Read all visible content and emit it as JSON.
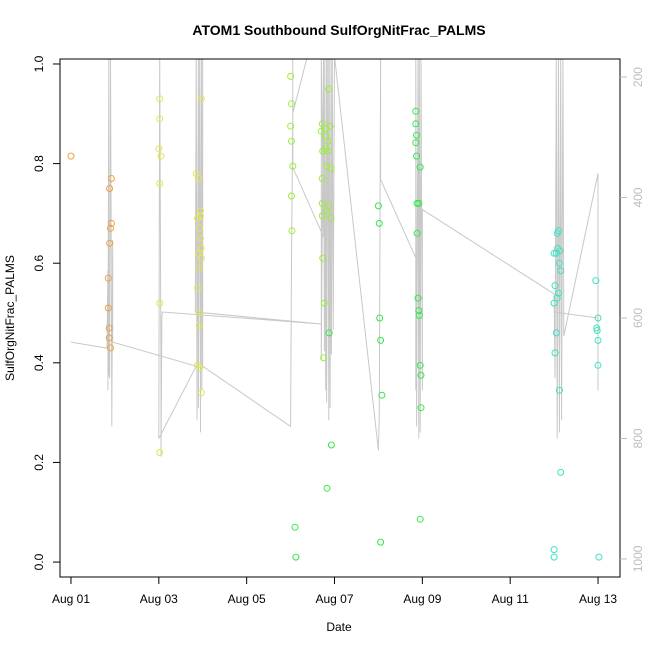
{
  "chart_data": {
    "type": "scatter",
    "title": "ATOM1 Southbound SulfOrgNitFrac_PALMS",
    "xlabel": "Date",
    "ylabel": "SulfOrgNitFrac_PALMS",
    "x_tick_labels": [
      "Aug 01",
      "Aug 03",
      "Aug 05",
      "Aug 07",
      "Aug 09",
      "Aug 11",
      "Aug 13"
    ],
    "x_tick_days": [
      1,
      3,
      5,
      7,
      9,
      11,
      13
    ],
    "x_range_days": [
      0.75,
      13.5
    ],
    "y_tick_labels": [
      "0.0",
      "0.2",
      "0.4",
      "0.6",
      "0.8",
      "1.0"
    ],
    "ylim": [
      -0.03,
      1.01
    ],
    "right_axis": {
      "quantity": "pressure",
      "tick_labels": [
        "200",
        "400",
        "600",
        "800",
        "1000"
      ],
      "range": [
        170,
        1030
      ],
      "inverted": true,
      "color": "#bdbdbd"
    },
    "grid": false,
    "point_series": [
      {
        "color": "#f0a040",
        "points": [
          [
            1.0,
            0.815
          ],
          [
            1.85,
            0.57
          ],
          [
            1.85,
            0.51
          ],
          [
            1.87,
            0.47
          ],
          [
            1.87,
            0.45
          ],
          [
            1.88,
            0.64
          ],
          [
            1.88,
            0.75
          ],
          [
            1.9,
            0.67
          ],
          [
            1.9,
            0.43
          ],
          [
            1.92,
            0.77
          ],
          [
            1.92,
            0.68
          ]
        ]
      },
      {
        "color": "#e6e64a",
        "points": [
          [
            3.0,
            0.83
          ],
          [
            3.02,
            0.93
          ],
          [
            3.02,
            0.89
          ],
          [
            3.02,
            0.76
          ],
          [
            3.02,
            0.52
          ],
          [
            3.02,
            0.22
          ],
          [
            3.05,
            0.815
          ],
          [
            3.85,
            0.78
          ],
          [
            3.88,
            0.69
          ],
          [
            3.88,
            0.55
          ],
          [
            3.88,
            0.395
          ],
          [
            3.9,
            0.77
          ],
          [
            3.9,
            0.62
          ],
          [
            3.92,
            0.59
          ],
          [
            3.92,
            0.5
          ],
          [
            3.92,
            0.475
          ],
          [
            3.93,
            0.67
          ],
          [
            3.93,
            0.39
          ],
          [
            3.95,
            0.705
          ],
          [
            3.95,
            0.695
          ],
          [
            3.95,
            0.65
          ],
          [
            3.96,
            0.63
          ],
          [
            3.97,
            0.93
          ],
          [
            3.97,
            0.34
          ],
          [
            3.97,
            0.61
          ]
        ]
      },
      {
        "color": "#9cf035",
        "points": [
          [
            6.0,
            0.975
          ],
          [
            6.0,
            0.875
          ],
          [
            6.02,
            0.92
          ],
          [
            6.02,
            0.845
          ],
          [
            6.02,
            0.735
          ],
          [
            6.03,
            0.665
          ],
          [
            6.05,
            0.795
          ],
          [
            6.7,
            0.865
          ],
          [
            6.72,
            0.88
          ],
          [
            6.72,
            0.77
          ],
          [
            6.72,
            0.72
          ],
          [
            6.72,
            0.695
          ],
          [
            6.73,
            0.825
          ],
          [
            6.73,
            0.61
          ],
          [
            6.75,
            0.41
          ],
          [
            6.77,
            0.52
          ],
          [
            6.8,
            0.87
          ],
          [
            6.8,
            0.855
          ],
          [
            6.8,
            0.83
          ],
          [
            6.82,
            0.795
          ],
          [
            6.82,
            0.705
          ],
          [
            6.85,
            0.845
          ],
          [
            6.85,
            0.825
          ],
          [
            6.87,
            0.95
          ],
          [
            6.87,
            0.715
          ],
          [
            6.9,
            0.875
          ],
          [
            6.92,
            0.79
          ],
          [
            6.92,
            0.69
          ]
        ]
      },
      {
        "color": "#33e94d",
        "points": [
          [
            6.1,
            0.07
          ],
          [
            6.12,
            0.01
          ],
          [
            6.88,
            0.46
          ],
          [
            6.93,
            0.235
          ],
          [
            6.83,
            0.148
          ],
          [
            8.0,
            0.715
          ],
          [
            8.02,
            0.68
          ],
          [
            8.03,
            0.49
          ],
          [
            8.05,
            0.445
          ],
          [
            8.08,
            0.335
          ],
          [
            8.05,
            0.04
          ],
          [
            8.85,
            0.905
          ],
          [
            8.85,
            0.88
          ],
          [
            8.85,
            0.842
          ],
          [
            8.87,
            0.857
          ],
          [
            8.87,
            0.815
          ],
          [
            8.88,
            0.72
          ],
          [
            8.88,
            0.66
          ],
          [
            8.9,
            0.53
          ],
          [
            8.92,
            0.72
          ],
          [
            8.92,
            0.505
          ],
          [
            8.93,
            0.495
          ],
          [
            8.95,
            0.793
          ],
          [
            8.95,
            0.395
          ],
          [
            8.97,
            0.375
          ],
          [
            8.97,
            0.31
          ],
          [
            8.95,
            0.086
          ]
        ]
      },
      {
        "color": "#3de2c2",
        "points": [
          [
            12.0,
            0.025
          ],
          [
            12.0,
            0.01
          ],
          [
            12.0,
            0.62
          ],
          [
            12.0,
            0.52
          ],
          [
            12.02,
            0.42
          ],
          [
            12.02,
            0.555
          ],
          [
            12.05,
            0.62
          ],
          [
            12.05,
            0.46
          ],
          [
            12.07,
            0.66
          ],
          [
            12.07,
            0.53
          ],
          [
            12.08,
            0.63
          ],
          [
            12.1,
            0.665
          ],
          [
            12.1,
            0.54
          ],
          [
            12.12,
            0.6
          ],
          [
            12.12,
            0.345
          ],
          [
            12.13,
            0.625
          ],
          [
            12.15,
            0.585
          ],
          [
            12.15,
            0.18
          ],
          [
            12.95,
            0.565
          ],
          [
            12.97,
            0.47
          ],
          [
            12.98,
            0.465
          ],
          [
            13.0,
            0.49
          ],
          [
            13.0,
            0.445
          ],
          [
            13.0,
            0.395
          ],
          [
            13.02,
            0.01
          ]
        ]
      }
    ],
    "pressure_trace": {
      "color": "#c8c8c8",
      "points": [
        [
          1.0,
          640
        ],
        [
          1.82,
          650
        ],
        [
          1.84,
          520
        ],
        [
          1.84,
          720
        ],
        [
          1.86,
          165
        ],
        [
          1.86,
          690
        ],
        [
          1.88,
          700
        ],
        [
          1.9,
          165
        ],
        [
          1.92,
          580
        ],
        [
          1.93,
          780
        ],
        [
          1.95,
          470
        ],
        [
          1.95,
          640
        ],
        [
          3.85,
          680
        ],
        [
          3.0,
          800
        ],
        [
          3.02,
          160
        ],
        [
          3.05,
          710
        ],
        [
          3.05,
          830
        ],
        [
          3.07,
          600
        ],
        [
          3.08,
          590
        ],
        [
          6.7,
          610
        ],
        [
          3.83,
          590
        ],
        [
          3.85,
          160
        ],
        [
          3.87,
          770
        ],
        [
          3.9,
          160
        ],
        [
          3.9,
          750
        ],
        [
          3.93,
          160
        ],
        [
          3.95,
          790
        ],
        [
          3.97,
          160
        ],
        [
          3.98,
          720
        ],
        [
          4.0,
          160
        ],
        [
          4.0,
          680
        ],
        [
          6.0,
          780
        ],
        [
          6.02,
          500
        ],
        [
          6.05,
          260
        ],
        [
          6.4,
          160
        ],
        [
          6.05,
          160
        ],
        [
          6.05,
          350
        ],
        [
          6.75,
          465
        ],
        [
          6.7,
          165
        ],
        [
          6.7,
          670
        ],
        [
          6.75,
          165
        ],
        [
          6.77,
          655
        ],
        [
          6.78,
          165
        ],
        [
          6.8,
          720
        ],
        [
          6.82,
          165
        ],
        [
          6.82,
          740
        ],
        [
          6.85,
          165
        ],
        [
          6.87,
          770
        ],
        [
          6.88,
          165
        ],
        [
          6.9,
          750
        ],
        [
          6.92,
          165
        ],
        [
          6.93,
          660
        ],
        [
          6.95,
          165
        ],
        [
          6.97,
          620
        ],
        [
          7.0,
          165
        ],
        [
          8.0,
          820
        ],
        [
          8.02,
          760
        ],
        [
          8.05,
          165
        ],
        [
          8.05,
          370
        ],
        [
          8.85,
          500
        ],
        [
          8.85,
          720
        ],
        [
          8.85,
          165
        ],
        [
          8.87,
          780
        ],
        [
          8.9,
          165
        ],
        [
          8.92,
          800
        ],
        [
          8.93,
          165
        ],
        [
          8.95,
          790
        ],
        [
          8.97,
          165
        ],
        [
          9.0,
          720
        ],
        [
          9.0,
          420
        ],
        [
          12.0,
          560
        ],
        [
          12.02,
          700
        ],
        [
          12.05,
          165
        ],
        [
          12.07,
          800
        ],
        [
          12.1,
          165
        ],
        [
          12.12,
          790
        ],
        [
          12.15,
          165
        ],
        [
          12.17,
          770
        ],
        [
          12.2,
          165
        ],
        [
          12.22,
          630
        ],
        [
          13.0,
          360
        ],
        [
          13.0,
          720
        ],
        [
          13.0,
          600
        ],
        [
          12.0,
          590
        ]
      ]
    }
  }
}
